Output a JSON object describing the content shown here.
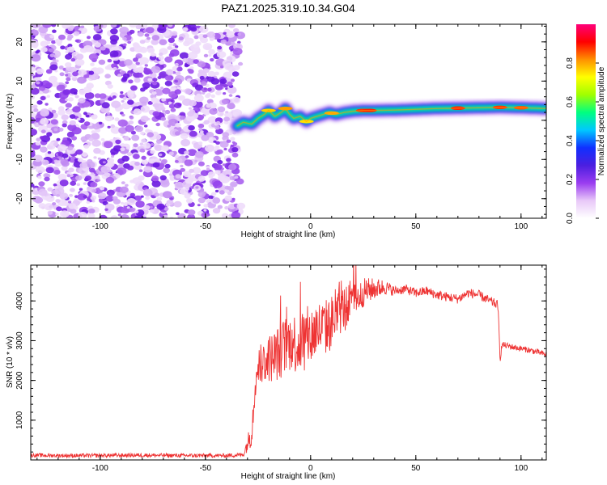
{
  "chart_data": [
    {
      "type": "heatmap",
      "title": "PAZ1.2025.319.10.34.G04",
      "xlabel": "Height of straight line (km)",
      "ylabel": "Frequency (Hz)",
      "xlim": [
        -133,
        112
      ],
      "ylim": [
        -25,
        24.5
      ],
      "xticks": [
        -100,
        -50,
        0,
        50,
        100
      ],
      "xticklabels": [
        "-100",
        "-50",
        "0",
        "50",
        "100"
      ],
      "yticks": [
        -20,
        -10,
        0,
        10,
        20
      ],
      "yticklabels": [
        "-20",
        "-10",
        "0",
        "10",
        "20"
      ],
      "noise_region_x": [
        -133,
        -33
      ],
      "signal_track": {
        "x": [
          -35,
          -32,
          -28,
          -25,
          -22,
          -20,
          -17,
          -14,
          -12,
          -10,
          -8,
          -5,
          -2,
          0,
          3,
          6,
          9,
          12,
          16,
          20,
          25,
          30,
          40,
          50,
          60,
          70,
          80,
          90,
          100,
          112
        ],
        "freq": [
          -1.5,
          -0.5,
          -1.0,
          0.5,
          1.5,
          2.5,
          1.0,
          2.0,
          3.0,
          1.5,
          0.5,
          1.0,
          -0.3,
          0.5,
          1.0,
          1.5,
          2.0,
          1.5,
          2.0,
          2.3,
          2.5,
          2.5,
          2.6,
          2.8,
          3.0,
          3.1,
          3.2,
          3.3,
          3.2,
          3.0
        ]
      },
      "colorbar": {
        "label": "Normalized spectral amplitude",
        "ticks": [
          0.0,
          0.2,
          0.4,
          0.6,
          0.8
        ],
        "ticklabels": [
          "0.0",
          "0.2",
          "0.4",
          "0.6",
          "0.8"
        ],
        "range": [
          0,
          1
        ],
        "colors": [
          "#ffffff",
          "#e8c8f8",
          "#9a3cf0",
          "#4b1fe0",
          "#1030ff",
          "#00c8ff",
          "#00ff80",
          "#a0ff00",
          "#ffff00",
          "#ff9000",
          "#ff0000",
          "#ff007a"
        ]
      }
    },
    {
      "type": "line",
      "xlabel": "Height of straight line (km)",
      "ylabel": "SNR (10 * v/v)",
      "xlim": [
        -133,
        112
      ],
      "ylim": [
        0,
        4900
      ],
      "xticks": [
        -100,
        -50,
        0,
        50,
        100
      ],
      "xticklabels": [
        "-100",
        "-50",
        "0",
        "50",
        "100"
      ],
      "yticks": [
        1000,
        2000,
        3000,
        4000
      ],
      "yticklabels": [
        "1000",
        "2000",
        "3000",
        "4000"
      ],
      "line_color": "#ee3333",
      "series_envelope": {
        "x": [
          -133,
          -120,
          -100,
          -80,
          -60,
          -40,
          -32,
          -28,
          -26,
          -22,
          -18,
          -15,
          -12,
          -9,
          -6,
          -3,
          0,
          3,
          6,
          9,
          12,
          15,
          18,
          20,
          23,
          26,
          30,
          35,
          40,
          45,
          50,
          55,
          60,
          65,
          70,
          75,
          80,
          85,
          89,
          90,
          91,
          95,
          100,
          105,
          112
        ],
        "y": [
          120,
          110,
          110,
          120,
          110,
          110,
          130,
          700,
          2200,
          2500,
          2600,
          2700,
          2900,
          3000,
          2900,
          3100,
          3100,
          3300,
          3300,
          3400,
          3600,
          3800,
          3900,
          4000,
          4100,
          4250,
          4300,
          4350,
          4250,
          4300,
          4200,
          4250,
          4150,
          4100,
          4050,
          4200,
          4150,
          4000,
          3900,
          2550,
          2900,
          2850,
          2800,
          2750,
          2650
        ]
      },
      "series_noise": {
        "x": [
          -133,
          -40,
          -32,
          -26,
          -15,
          -5,
          10,
          22,
          40,
          90,
          91,
          112
        ],
        "amplitude": [
          50,
          50,
          60,
          500,
          700,
          800,
          700,
          400,
          120,
          120,
          80,
          70
        ]
      }
    }
  ]
}
